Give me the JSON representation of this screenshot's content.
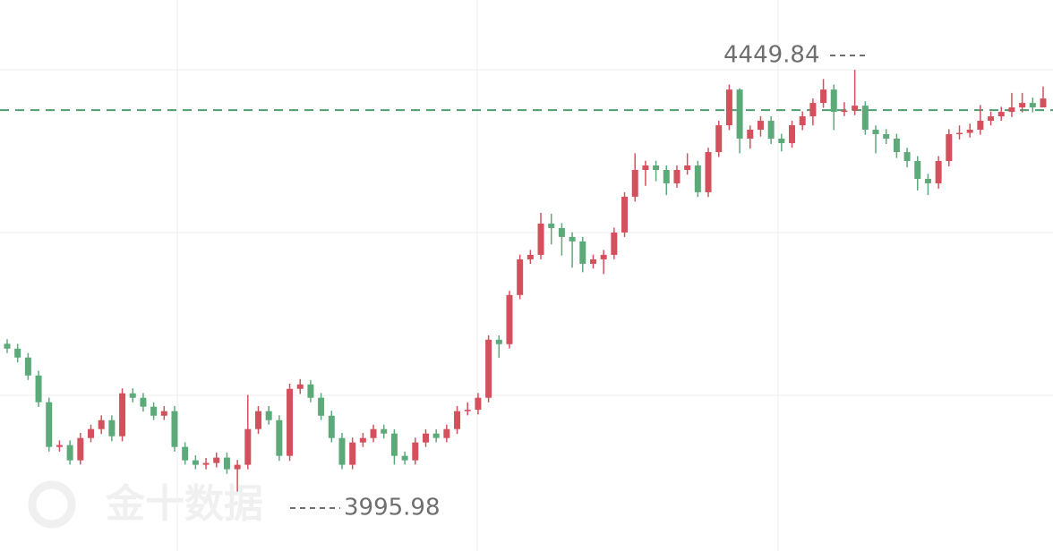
{
  "chart_data": {
    "type": "candlestick",
    "open": [
      4155.0,
      4149.8,
      4140.2,
      4120.9,
      4092.1,
      4044.0,
      4046.0,
      4029.6,
      4053.6,
      4063.2,
      4072.8,
      4055.5,
      4101.7,
      4096.9,
      4087.3,
      4077.6,
      4082.5,
      4044.0,
      4029.6,
      4024.8,
      4026.7,
      4032.5,
      4020.0,
      4024.8,
      4063.2,
      4082.5,
      4072.8,
      4034.4,
      4106.5,
      4111.3,
      4096.9,
      4077.6,
      4053.6,
      4024.8,
      4048.8,
      4053.6,
      4063.2,
      4058.4,
      4034.4,
      4029.6,
      4048.8,
      4058.4,
      4053.6,
      4063.2,
      4082.5,
      4084.0,
      4096.9,
      4159.4,
      4154.6,
      4207.5,
      4245.9,
      4250.7,
      4284.4,
      4279.6,
      4270.0,
      4265.2,
      4241.1,
      4245.9,
      4250.7,
      4274.8,
      4313.3,
      4342.1,
      4346.9,
      4342.1,
      4327.7,
      4342.1,
      4346.9,
      4318.1,
      4361.3,
      4390.2,
      4428.6,
      4375.8,
      4385.4,
      4395.0,
      4375.8,
      4371.0,
      4390.2,
      4399.8,
      4414.2,
      4428.6,
      4404.6,
      4406.0,
      4411.3,
      4385.4,
      4380.6,
      4375.8,
      4361.3,
      4351.7,
      4332.5,
      4327.7,
      4351.7,
      4380.6,
      4382.0,
      4385.4,
      4395.0,
      4399.8,
      4404.6,
      4409.4,
      4414.2,
      4409.4
    ],
    "high": [
      4160,
      4155,
      4145,
      4126,
      4097,
      4051,
      4051,
      4059,
      4068,
      4078,
      4078,
      4107,
      4107,
      4102,
      4092,
      4088,
      4088,
      4049,
      4035,
      4032,
      4038,
      4038,
      4030,
      4100,
      4088,
      4088,
      4078,
      4112,
      4117,
      4116,
      4102,
      4083,
      4059,
      4054,
      4059,
      4068,
      4068,
      4063,
      4039,
      4054,
      4063,
      4063,
      4068,
      4088,
      4092,
      4102,
      4164,
      4164,
      4212,
      4251,
      4256,
      4296,
      4295,
      4285,
      4275,
      4270,
      4251,
      4256,
      4280,
      4318,
      4360,
      4352,
      4352,
      4347,
      4347,
      4360,
      4352,
      4366,
      4395,
      4434,
      4430,
      4390,
      4400,
      4400,
      4381,
      4395,
      4405,
      4419,
      4440,
      4434,
      4415,
      4449.84,
      4416,
      4390,
      4386,
      4381,
      4366,
      4357,
      4338,
      4357,
      4386,
      4390,
      4392,
      4412,
      4405,
      4410,
      4425,
      4425,
      4420,
      4432
    ],
    "low": [
      4145,
      4135,
      4116,
      4087,
      4039,
      4039,
      4025,
      4025,
      4049,
      4058,
      4050,
      4050,
      4092,
      4082,
      4073,
      4073,
      4039,
      4025,
      4020,
      4020,
      4022,
      4015,
      3995.98,
      4020,
      4058,
      4068,
      4029,
      4029,
      4101,
      4092,
      4073,
      4049,
      4020,
      4020,
      4044,
      4049,
      4053,
      4025,
      4025,
      4025,
      4044,
      4049,
      4049,
      4058,
      4078,
      4079,
      4092,
      4140,
      4150,
      4203,
      4241,
      4246,
      4262,
      4250,
      4237,
      4232,
      4236,
      4230,
      4246,
      4270,
      4308,
      4325,
      4330,
      4315,
      4323,
      4337,
      4313,
      4313,
      4356,
      4385,
      4360,
      4365,
      4378,
      4370,
      4362,
      4366,
      4385,
      4390,
      4409,
      4385,
      4400,
      4401,
      4380,
      4360,
      4370,
      4355,
      4345,
      4320,
      4315,
      4322,
      4346,
      4375,
      4377,
      4380,
      4390,
      4395,
      4399,
      4404,
      4404,
      4412
    ],
    "close": [
      4149.8,
      4140.2,
      4120.9,
      4092.1,
      4044.0,
      4046.0,
      4029.6,
      4053.6,
      4063.2,
      4072.8,
      4055.5,
      4101.7,
      4096.9,
      4087.3,
      4077.6,
      4082.5,
      4044.0,
      4029.6,
      4024.8,
      4026.7,
      4032.5,
      4020.0,
      4024.8,
      4063.2,
      4082.5,
      4072.8,
      4034.4,
      4106.5,
      4111.3,
      4096.9,
      4077.6,
      4053.6,
      4024.8,
      4048.8,
      4053.6,
      4063.2,
      4058.4,
      4034.4,
      4029.6,
      4048.8,
      4058.4,
      4053.6,
      4063.2,
      4082.5,
      4084.0,
      4096.9,
      4159.4,
      4154.6,
      4207.5,
      4245.9,
      4250.7,
      4284.4,
      4279.6,
      4270.0,
      4265.2,
      4241.1,
      4245.9,
      4250.7,
      4274.8,
      4313.3,
      4342.1,
      4346.9,
      4342.1,
      4327.7,
      4342.1,
      4346.9,
      4318.1,
      4361.3,
      4390.2,
      4428.6,
      4375.8,
      4385.4,
      4395.0,
      4375.8,
      4371.0,
      4390.2,
      4399.8,
      4414.2,
      4428.6,
      4404.6,
      4406.0,
      4411.3,
      4385.4,
      4380.6,
      4375.8,
      4361.3,
      4351.7,
      4332.5,
      4327.7,
      4351.7,
      4380.6,
      4382.0,
      4385.4,
      4395.0,
      4399.8,
      4404.6,
      4409.4,
      4414.2,
      4409.4,
      4419.0
    ],
    "up_color": "#d4505c",
    "down_color": "#5ca97a",
    "ylim": [
      3932,
      4525
    ],
    "reference_line": 4406.5,
    "reference_color": "#4e9e6e",
    "max_label": 4449.84,
    "min_label": 3995.98,
    "watermark": "金十数据"
  }
}
